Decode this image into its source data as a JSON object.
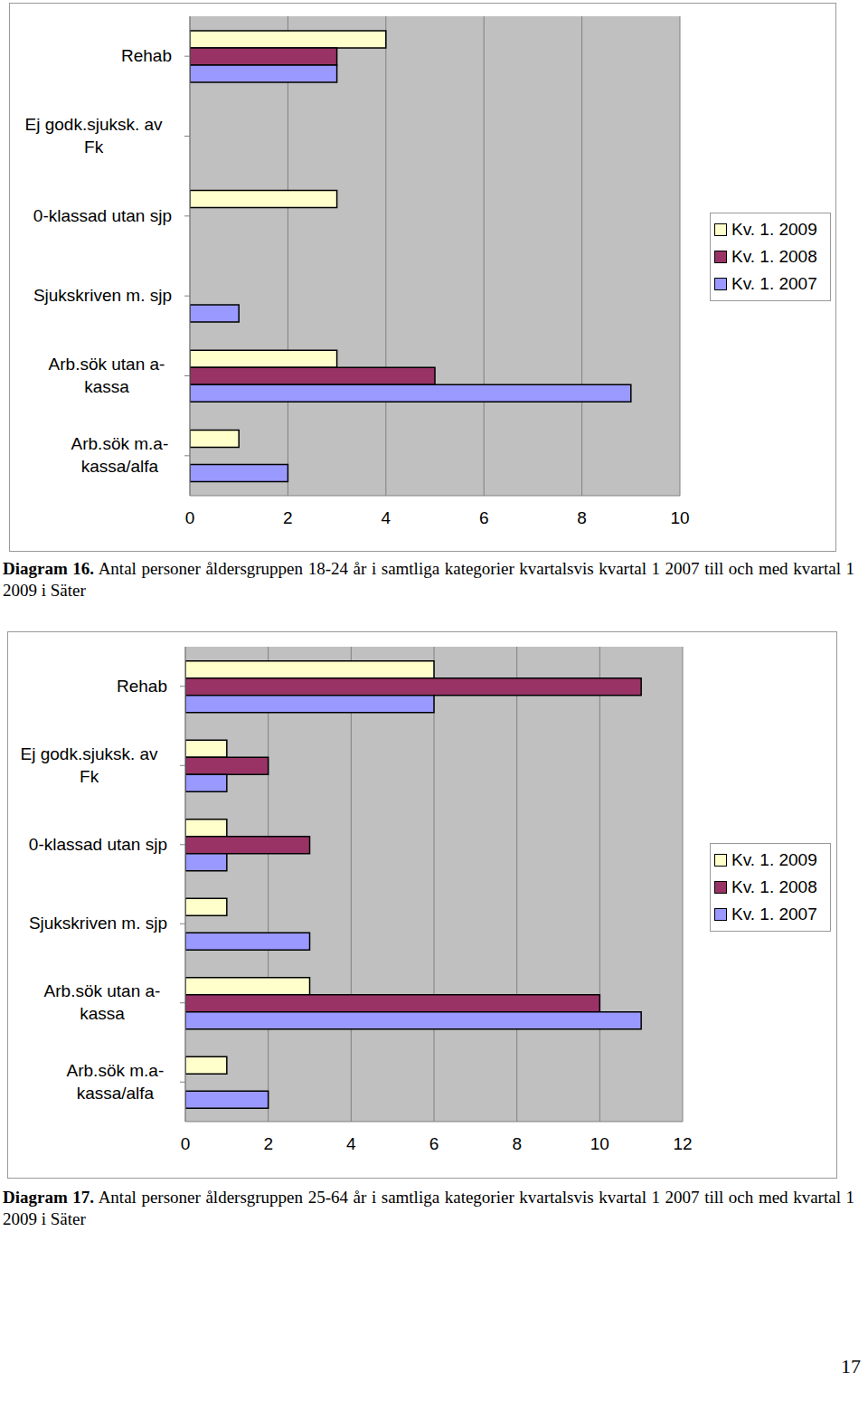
{
  "chart_data": [
    {
      "type": "bar",
      "orientation": "horizontal",
      "title": "Diagram 16.",
      "subtitle": "Antal personer åldersgruppen 18-24 år i samtliga kategorier kvartalsvis kvartal 1 2007 till och med kvartal 1 2009 i Säter",
      "categories": [
        "Rehab",
        "Ej godk.sjuksk. av Fk",
        "0-klassad utan sjp",
        "Sjukskriven m. sjp",
        "Arb.sök utan a-kassa",
        "Arb.sök m.a-kassa/alfa"
      ],
      "series": [
        {
          "name": "Kv. 1. 2009",
          "color": "#FFFFCC",
          "values": [
            4,
            null,
            3,
            null,
            3,
            1
          ]
        },
        {
          "name": "Kv. 1. 2008",
          "color": "#993366",
          "values": [
            3,
            null,
            null,
            null,
            5,
            null
          ]
        },
        {
          "name": "Kv. 1. 2007",
          "color": "#9999FF",
          "values": [
            3,
            null,
            null,
            1,
            9,
            2
          ]
        }
      ],
      "xlim": [
        0,
        10
      ],
      "xticks": [
        0,
        2,
        4,
        6,
        8,
        10
      ],
      "grid": true,
      "legend": "right"
    },
    {
      "type": "bar",
      "orientation": "horizontal",
      "title": "Diagram 17.",
      "subtitle": "Antal personer åldersgruppen 25-64 år i samtliga kategorier kvartalsvis kvartal 1 2007 till och med kvartal 1 2009 i Säter",
      "categories": [
        "Rehab",
        "Ej godk.sjuksk. av Fk",
        "0-klassad utan sjp",
        "Sjukskriven m. sjp",
        "Arb.sök utan a-kassa",
        "Arb.sök m.a-kassa/alfa"
      ],
      "series": [
        {
          "name": "Kv. 1. 2009",
          "color": "#FFFFCC",
          "values": [
            6,
            1,
            1,
            1,
            3,
            1
          ]
        },
        {
          "name": "Kv. 1. 2008",
          "color": "#993366",
          "values": [
            11,
            2,
            3,
            null,
            10,
            null
          ]
        },
        {
          "name": "Kv. 1. 2007",
          "color": "#9999FF",
          "values": [
            6,
            1,
            1,
            3,
            11,
            2
          ]
        }
      ],
      "xlim": [
        0,
        12
      ],
      "xticks": [
        0,
        2,
        4,
        6,
        8,
        10,
        12
      ],
      "grid": true,
      "legend": "right"
    }
  ],
  "page": {
    "number": "17"
  }
}
